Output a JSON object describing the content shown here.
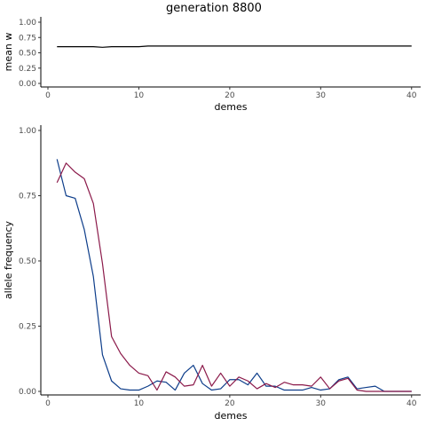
{
  "title": "generation 8800",
  "chart_data": [
    {
      "type": "line",
      "panel": "top",
      "title": "generation 8800",
      "xlabel": "demes",
      "ylabel": "mean w",
      "xlim": [
        0,
        41
      ],
      "ylim": [
        0,
        1
      ],
      "xticks": [
        0,
        10,
        20,
        30,
        40
      ],
      "yticks": [
        0.0,
        0.25,
        0.5,
        0.75,
        1.0
      ],
      "ytick_labels": [
        "0.00",
        "0.25",
        "0.50",
        "0.75",
        "1.00"
      ],
      "grid": false,
      "series": [
        {
          "color": "#000000",
          "x": [
            1,
            2,
            3,
            4,
            5,
            6,
            7,
            8,
            9,
            10,
            11,
            12,
            13,
            14,
            15,
            16,
            17,
            18,
            19,
            20,
            21,
            22,
            23,
            24,
            25,
            26,
            27,
            28,
            29,
            30,
            31,
            32,
            33,
            34,
            35,
            36,
            37,
            38,
            39,
            40
          ],
          "values": [
            0.6,
            0.6,
            0.6,
            0.6,
            0.6,
            0.59,
            0.6,
            0.6,
            0.6,
            0.6,
            0.61,
            0.61,
            0.61,
            0.61,
            0.61,
            0.61,
            0.61,
            0.61,
            0.61,
            0.61,
            0.61,
            0.61,
            0.61,
            0.61,
            0.61,
            0.61,
            0.61,
            0.61,
            0.61,
            0.61,
            0.61,
            0.61,
            0.61,
            0.61,
            0.61,
            0.61,
            0.61,
            0.61,
            0.61,
            0.61
          ]
        }
      ]
    },
    {
      "type": "line",
      "panel": "bottom",
      "xlabel": "demes",
      "ylabel": "allele frequency",
      "xlim": [
        0,
        41
      ],
      "ylim": [
        0,
        1
      ],
      "xticks": [
        0,
        10,
        20,
        30,
        40
      ],
      "yticks": [
        0.0,
        0.25,
        0.5,
        0.75,
        1.0
      ],
      "ytick_labels": [
        "0.00",
        "0.25",
        "0.50",
        "0.75",
        "1.00"
      ],
      "grid": false,
      "series": [
        {
          "color": "#0d3d8a",
          "x": [
            1,
            2,
            3,
            4,
            5,
            6,
            7,
            8,
            9,
            10,
            11,
            12,
            13,
            14,
            15,
            16,
            17,
            18,
            19,
            20,
            21,
            22,
            23,
            24,
            25,
            26,
            27,
            28,
            29,
            30,
            31,
            32,
            33,
            34,
            35,
            36,
            37,
            38,
            39,
            40
          ],
          "values": [
            0.89,
            0.75,
            0.74,
            0.62,
            0.44,
            0.14,
            0.04,
            0.01,
            0.005,
            0.005,
            0.02,
            0.04,
            0.035,
            0.005,
            0.07,
            0.1,
            0.03,
            0.005,
            0.01,
            0.045,
            0.045,
            0.025,
            0.07,
            0.02,
            0.02,
            0.005,
            0.005,
            0.005,
            0.015,
            0.005,
            0.01,
            0.045,
            0.055,
            0.01,
            0.015,
            0.02,
            0.0,
            0.0,
            0.0,
            0.0
          ]
        },
        {
          "color": "#8b1a4a",
          "x": [
            1,
            2,
            3,
            4,
            5,
            6,
            7,
            8,
            9,
            10,
            11,
            12,
            13,
            14,
            15,
            16,
            17,
            18,
            19,
            20,
            21,
            22,
            23,
            24,
            25,
            26,
            27,
            28,
            29,
            30,
            31,
            32,
            33,
            34,
            35,
            36,
            37,
            38,
            39,
            40
          ],
          "values": [
            0.8,
            0.875,
            0.84,
            0.815,
            0.72,
            0.49,
            0.21,
            0.145,
            0.1,
            0.07,
            0.06,
            0.005,
            0.075,
            0.055,
            0.02,
            0.025,
            0.1,
            0.02,
            0.07,
            0.02,
            0.055,
            0.04,
            0.01,
            0.03,
            0.015,
            0.035,
            0.025,
            0.025,
            0.02,
            0.055,
            0.01,
            0.04,
            0.05,
            0.005,
            0.0,
            0.0,
            0.0,
            0.0,
            0.0,
            0.0
          ]
        }
      ]
    }
  ]
}
